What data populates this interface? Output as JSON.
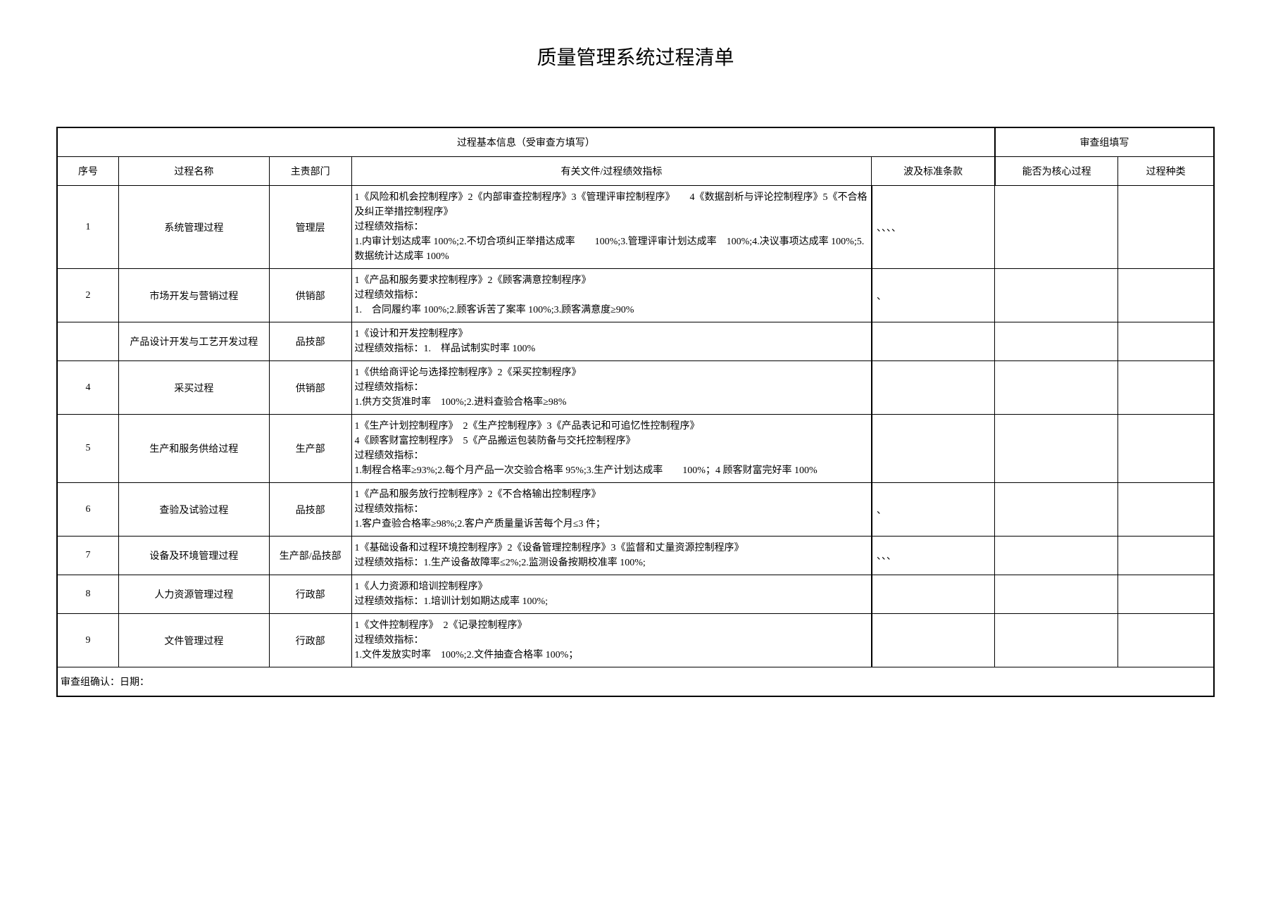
{
  "title": "质量管理系统过程清单",
  "headers": {
    "group_left": "过程基本信息（受审查方填写）",
    "group_right": "审查组填写",
    "seq": "序号",
    "name": "过程名称",
    "dept": "主责部门",
    "doc": "有关文件/过程绩效指标",
    "clause": "波及标准条款",
    "core": "能否为核心过程",
    "type": "过程种类"
  },
  "rows": [
    {
      "seq": "1",
      "name": "系统管理过程",
      "dept": "管理层",
      "doc": "1《风险和机会控制程序》2《内部审查控制程序》3《管理评审控制程序》　　4《数据剖析与评论控制程序》5《不合格及纠正举措控制程序》\n过程绩效指标：\n1.内审计划达成率 100%;2.不切合项纠正举措达成率　　100%;3.管理评审计划达成率　100%;4.决议事项达成率 100%;5.数据统计达成率 100%",
      "clause": "、、、、"
    },
    {
      "seq": "2",
      "name": "市场开发与营销过程",
      "dept": "供销部",
      "doc": "1《产品和服务要求控制程序》2《顾客满意控制程序》\n过程绩效指标：\n1.　合同履约率 100%;2.顾客诉苦了案率 100%;3.顾客满意度≥90%",
      "clause": "、"
    },
    {
      "seq": "",
      "name": "产品设计开发与工艺开发过程",
      "dept": "品技部",
      "doc": "1《设计和开发控制程序》\n过程绩效指标：1.　样品试制实时率 100%",
      "clause": ""
    },
    {
      "seq": "4",
      "name": "采买过程",
      "dept": "供销部",
      "doc": "1《供给商评论与选择控制程序》2《采买控制程序》\n过程绩效指标：\n1.供方交货准时率　100%;2.进料查验合格率≥98%",
      "clause": ""
    },
    {
      "seq": "5",
      "name": "生产和服务供给过程",
      "dept": "生产部",
      "doc": "1《生产计划控制程序》　2《生产控制程序》3《产品表记和可追忆性控制程序》\n4《顾客财富控制程序》　5《产品搬运包装防备与交托控制程序》\n过程绩效指标：\n1.制程合格率≥93%;2.每个月产品一次交验合格率 95%;3.生产计划达成率　　100%；4 顾客财富完好率 100%",
      "clause": ""
    },
    {
      "seq": "6",
      "name": "查验及试验过程",
      "dept": "品技部",
      "doc": "1《产品和服务放行控制程序》2《不合格输出控制程序》\n过程绩效指标：\n1.客户查验合格率≥98%;2.客户产质量量诉苦每个月≤3 件；",
      "clause": "、"
    },
    {
      "seq": "7",
      "name": "设备及环境管理过程",
      "dept": "生产部/品技部",
      "doc": "1《基础设备和过程环境控制程序》2《设备管理控制程序》3《监督和丈量资源控制程序》\n过程绩效指标：1.生产设备故障率≤2%;2.监测设备按期校准率 100%;",
      "clause": "、、、"
    },
    {
      "seq": "8",
      "name": "人力资源管理过程",
      "dept": "行政部",
      "doc": "1《人力资源和培训控制程序》\n过程绩效指标：1.培训计划如期达成率 100%;",
      "clause": ""
    },
    {
      "seq": "9",
      "name": "文件管理过程",
      "dept": "行政部",
      "doc": "1《文件控制程序》　2《记录控制程序》\n过程绩效指标：\n1.文件发放实时率　100%;2.文件抽查合格率 100%；",
      "clause": ""
    }
  ],
  "footer": "审查组确认：日期："
}
